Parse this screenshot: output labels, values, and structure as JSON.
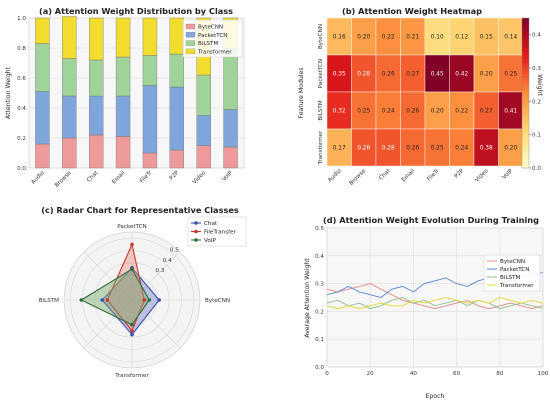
{
  "chart_data": [
    {
      "id": "a",
      "type": "bar",
      "title": "(a) Attention Weight Distribution by Class",
      "xlabel": "",
      "ylabel": "Attention Weight",
      "ylim": [
        0,
        1.0
      ],
      "yticks": [
        "0.0",
        "0.2",
        "0.4",
        "0.6",
        "0.8",
        "1.0"
      ],
      "categories": [
        "Audio",
        "Browse",
        "Chat",
        "Email",
        "FileTr",
        "P2P",
        "Video",
        "VoIP"
      ],
      "legend_position": "upper-right",
      "series": [
        {
          "name": "ByteCNN",
          "color": "#ee9a9a",
          "values": [
            0.16,
            0.2,
            0.22,
            0.21,
            0.1,
            0.12,
            0.15,
            0.14
          ]
        },
        {
          "name": "PacketTCN",
          "color": "#7fa6dc",
          "values": [
            0.35,
            0.28,
            0.26,
            0.27,
            0.45,
            0.42,
            0.2,
            0.25
          ]
        },
        {
          "name": "BiLSTM",
          "color": "#9fd39a",
          "values": [
            0.32,
            0.25,
            0.24,
            0.26,
            0.2,
            0.22,
            0.27,
            0.41
          ]
        },
        {
          "name": "Transformer",
          "color": "#f2dc2e",
          "values": [
            0.17,
            0.28,
            0.28,
            0.26,
            0.25,
            0.24,
            0.38,
            0.2
          ]
        }
      ]
    },
    {
      "id": "b",
      "type": "heatmap",
      "title": "(b) Attention Weight Heatmap",
      "ylabel": "Feature Modules",
      "colorbar_label": "Weight",
      "colorbar_ticks": [
        "0.0",
        "0.1",
        "0.2",
        "0.3",
        "0.4"
      ],
      "vmin": 0.0,
      "vmax": 0.45,
      "rows": [
        "ByteCNN",
        "PacketTCN",
        "BiLSTM",
        "Transformer"
      ],
      "columns": [
        "Audio",
        "Browse",
        "Chat",
        "Email",
        "FileTr",
        "P2P",
        "Video",
        "VoIP"
      ],
      "values": [
        [
          0.16,
          0.2,
          0.22,
          0.21,
          0.1,
          0.12,
          0.15,
          0.14
        ],
        [
          0.35,
          0.28,
          0.26,
          0.27,
          0.45,
          0.42,
          0.2,
          0.25
        ],
        [
          0.32,
          0.25,
          0.24,
          0.26,
          0.2,
          0.22,
          0.27,
          0.41
        ],
        [
          0.17,
          0.28,
          0.28,
          0.26,
          0.25,
          0.24,
          0.38,
          0.2
        ]
      ],
      "labels": [
        [
          "0.16",
          "0.20",
          "0.22",
          "0.21",
          "0.10",
          "0.12",
          "0.15",
          "0.14"
        ],
        [
          "0.35",
          "0.28",
          "0.26",
          "0.27",
          "0.45",
          "0.42",
          "0.20",
          "0.25"
        ],
        [
          "0.32",
          "0.25",
          "0.24",
          "0.26",
          "0.20",
          "0.22",
          "0.27",
          "0.41"
        ],
        [
          "0.17",
          "0.28",
          "0.28",
          "0.26",
          "0.25",
          "0.24",
          "0.38",
          "0.20"
        ]
      ]
    },
    {
      "id": "c",
      "type": "radar",
      "title": "(c) Radar Chart for Representative Classes",
      "axes": [
        "PacketTCN",
        "ByteCNN",
        "Transformer",
        "BiLSTM"
      ],
      "rmax": 0.55,
      "rticks": [
        "0.3",
        "0.4",
        "0.5"
      ],
      "rtick_values": [
        0.3,
        0.4,
        0.5
      ],
      "legend_position": "upper-right",
      "series": [
        {
          "name": "Chat",
          "color": "#3c4fb0",
          "fill": "#7a86cc",
          "values": [
            0.26,
            0.22,
            0.28,
            0.24
          ]
        },
        {
          "name": "FileTransfer",
          "color": "#c8382f",
          "fill": "#e49080",
          "values": [
            0.45,
            0.1,
            0.25,
            0.2
          ]
        },
        {
          "name": "VoIP",
          "color": "#2e6e3a",
          "fill": "#7eab6c",
          "values": [
            0.25,
            0.14,
            0.2,
            0.41
          ]
        }
      ]
    },
    {
      "id": "d",
      "type": "line",
      "title": "(d) Attention Weight Evolution During Training",
      "xlabel": "Epoch",
      "ylabel": "Average Attention Weight",
      "xlim": [
        0,
        100
      ],
      "ylim": [
        0,
        0.5
      ],
      "xticks": [
        0,
        20,
        40,
        60,
        80,
        100
      ],
      "yticks": [
        "0.0",
        "0.1",
        "0.2",
        "0.3",
        "0.4",
        "0.5"
      ],
      "legend_position": "upper-right",
      "x": [
        0,
        5,
        10,
        15,
        20,
        25,
        30,
        35,
        40,
        45,
        50,
        55,
        60,
        65,
        70,
        75,
        80,
        85,
        90,
        95,
        100
      ],
      "series": [
        {
          "name": "ByteCNN",
          "color": "#e48a8a",
          "values": [
            0.28,
            0.27,
            0.28,
            0.29,
            0.3,
            0.28,
            0.26,
            0.24,
            0.23,
            0.22,
            0.21,
            0.22,
            0.23,
            0.24,
            0.22,
            0.21,
            0.22,
            0.23,
            0.22,
            0.21,
            0.22
          ]
        },
        {
          "name": "PacketTCN",
          "color": "#5b86cc",
          "values": [
            0.26,
            0.27,
            0.29,
            0.27,
            0.26,
            0.25,
            0.28,
            0.29,
            0.27,
            0.3,
            0.31,
            0.32,
            0.3,
            0.29,
            0.31,
            0.32,
            0.3,
            0.31,
            0.32,
            0.33,
            0.34
          ]
        },
        {
          "name": "BiLSTM",
          "color": "#8ec08a",
          "values": [
            0.23,
            0.24,
            0.22,
            0.23,
            0.21,
            0.22,
            0.24,
            0.25,
            0.23,
            0.24,
            0.22,
            0.23,
            0.24,
            0.22,
            0.24,
            0.23,
            0.21,
            0.22,
            0.23,
            0.22,
            0.21
          ]
        },
        {
          "name": "Transformer",
          "color": "#e6d832",
          "values": [
            0.22,
            0.21,
            0.22,
            0.21,
            0.22,
            0.23,
            0.22,
            0.22,
            0.24,
            0.23,
            0.24,
            0.25,
            0.24,
            0.23,
            0.24,
            0.23,
            0.25,
            0.24,
            0.23,
            0.24,
            0.23
          ]
        }
      ]
    }
  ]
}
